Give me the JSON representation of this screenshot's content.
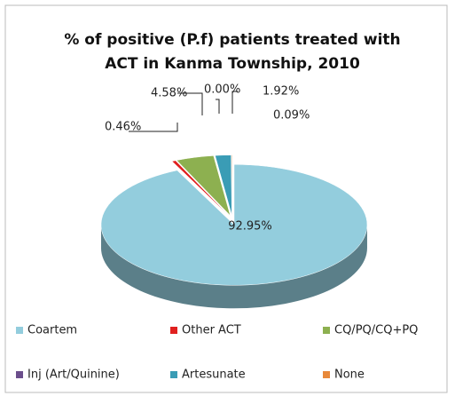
{
  "chart_data": {
    "type": "pie3d",
    "title_lines": [
      "% of positive (P.f) patients treated with",
      "ACT in Kanma Township, 2010"
    ],
    "categories": [
      "Coartem",
      "Other ACT",
      "CQ/PQ/CQ+PQ",
      "Inj (Art/Quinine)",
      "Artesunate",
      "None"
    ],
    "values": [
      92.95,
      0.46,
      4.58,
      0.0,
      1.92,
      0.09
    ],
    "value_labels": [
      "92.95%",
      "0.46%",
      "4.58%",
      "0.00%",
      "1.92%",
      "0.09%"
    ],
    "colors": [
      "#93cddd",
      "#e0201f",
      "#8db050",
      "#6b4e8c",
      "#3a9cb5",
      "#e8893a"
    ],
    "legend": "bottom"
  }
}
